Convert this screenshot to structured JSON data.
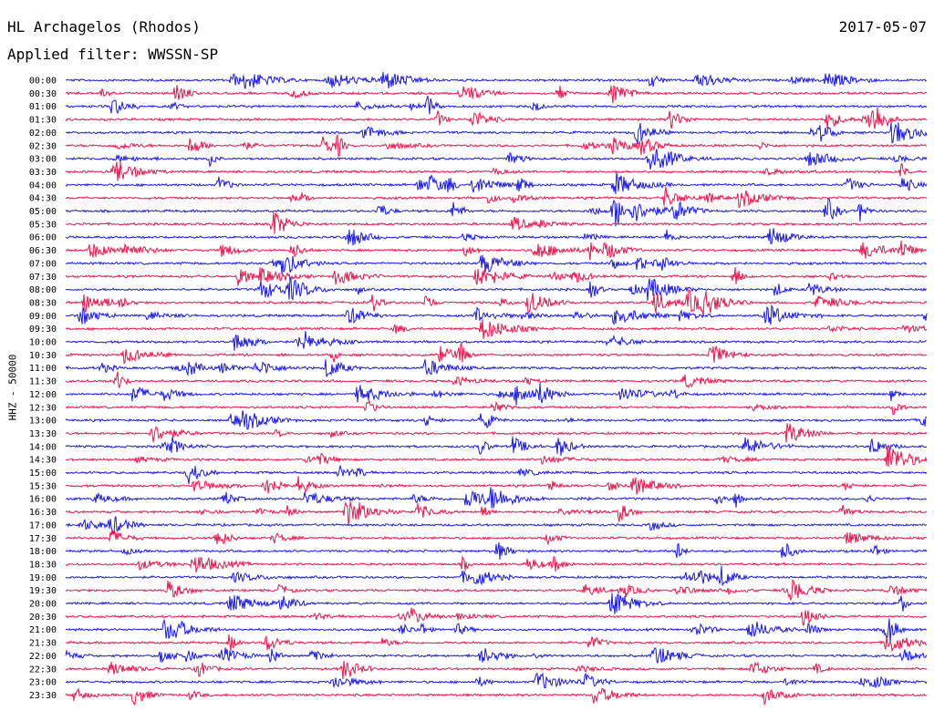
{
  "header": {
    "station": "HL Archagelos (Rhodos)",
    "date": "2017-05-07",
    "filter_label": "Applied filter: WWSSN-SP",
    "scale_label": "HHZ - 50000"
  },
  "colors": {
    "blue": "#1a1ae6",
    "red": "#e8174e"
  },
  "chart_data": {
    "type": "line",
    "title": "HL Archagelos (Rhodos)",
    "subtitle": "Applied filter: WWSSN-SP",
    "date": "2017-05-07",
    "ylabel": "HHZ - 50000",
    "trace_colors": [
      "#1a1ae6",
      "#e8174e"
    ],
    "rows": [
      "00:00",
      "00:30",
      "01:00",
      "01:30",
      "02:00",
      "02:30",
      "03:00",
      "03:30",
      "04:00",
      "04:30",
      "05:00",
      "05:30",
      "06:00",
      "06:30",
      "07:00",
      "07:30",
      "08:00",
      "08:30",
      "09:00",
      "09:30",
      "10:00",
      "10:30",
      "11:00",
      "11:30",
      "12:00",
      "12:30",
      "13:00",
      "13:30",
      "14:00",
      "14:30",
      "15:00",
      "15:30",
      "16:00",
      "16:30",
      "17:00",
      "17:30",
      "18:00",
      "18:30",
      "19:00",
      "19:30",
      "20:00",
      "20:30",
      "21:00",
      "21:30",
      "22:00",
      "22:30",
      "23:00",
      "23:30"
    ]
  }
}
